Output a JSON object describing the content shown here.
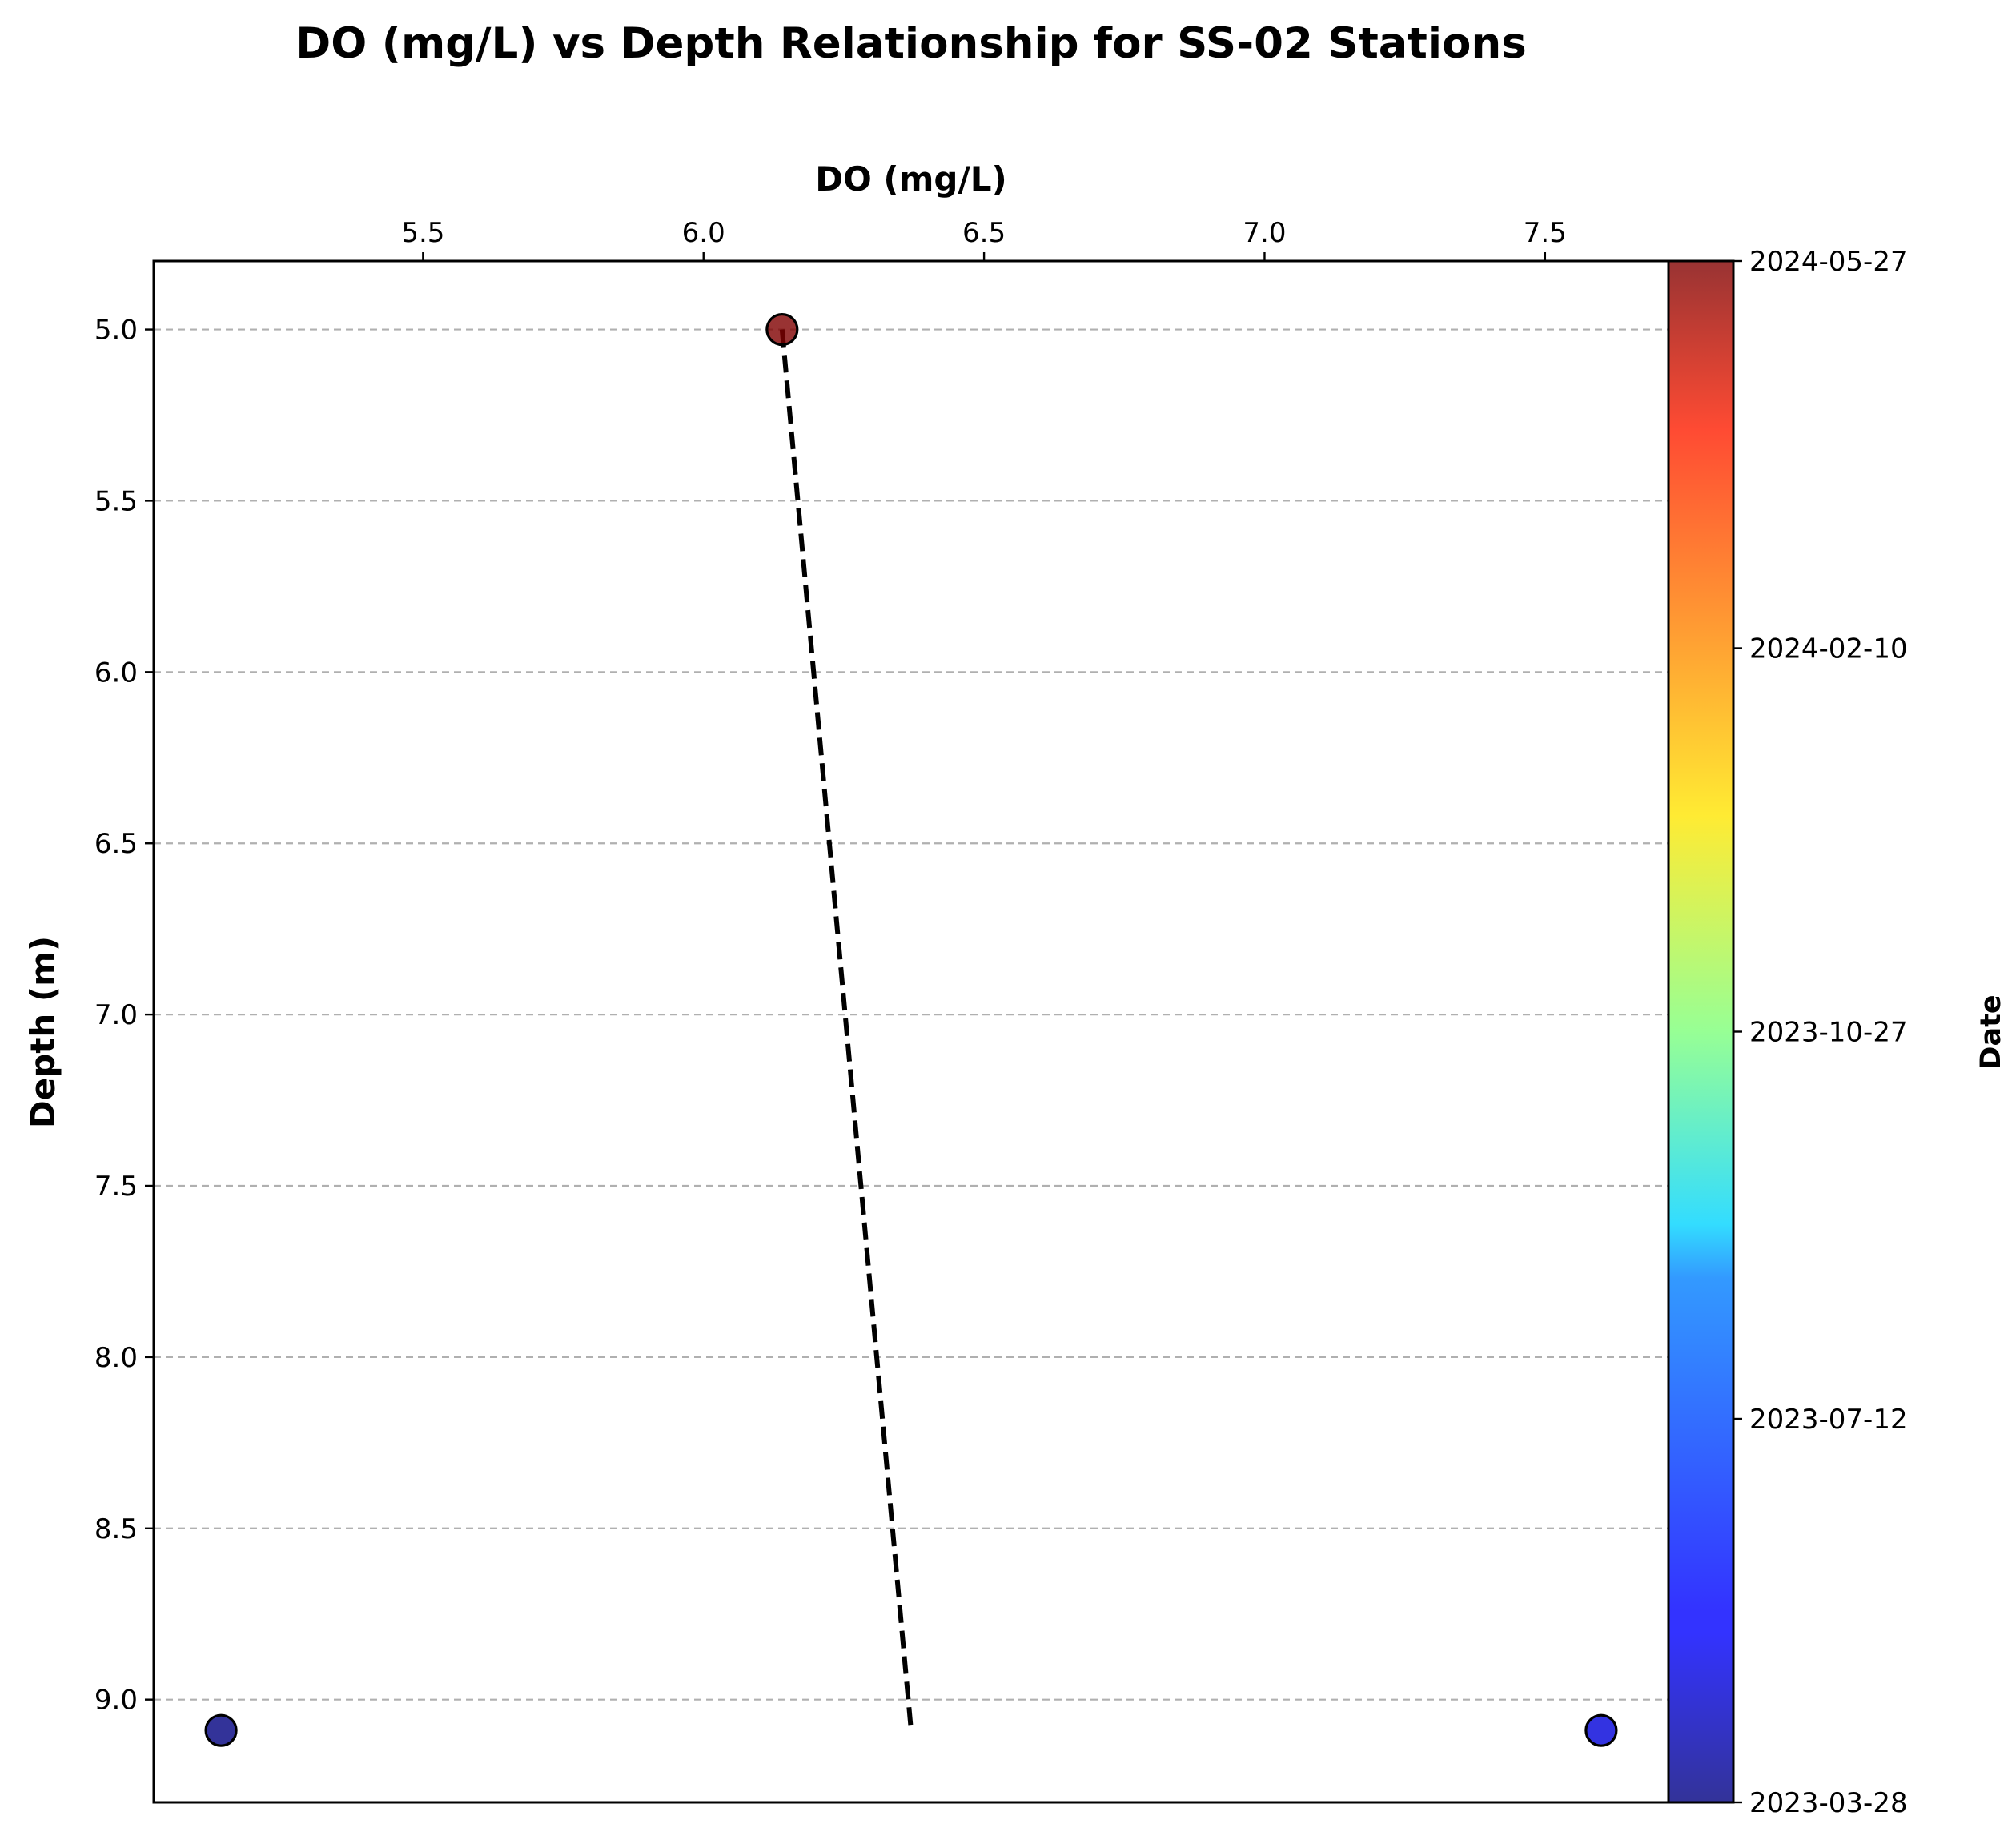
{
  "chart_data": {
    "type": "scatter",
    "title": "DO (mg/L) vs Depth Relationship for SS-02 Stations",
    "xlabel": "DO (mg/L)",
    "ylabel": "Depth (m)",
    "x_axis_position": "top",
    "y_axis_inverted": true,
    "xlim": [
      5.02,
      7.72
    ],
    "ylim": [
      4.8,
      9.3
    ],
    "x_ticks": [
      "5.5",
      "6.0",
      "6.5",
      "7.0",
      "7.5"
    ],
    "y_ticks": [
      "5.0",
      "5.5",
      "6.0",
      "6.5",
      "7.0",
      "7.5",
      "8.0",
      "8.5",
      "9.0"
    ],
    "grid": "horizontal dashed",
    "points": [
      {
        "x": 6.14,
        "y": 5.0,
        "date": "2024-05-27"
      },
      {
        "x": 5.14,
        "y": 9.09,
        "date": "2023-03-28"
      },
      {
        "x": 7.6,
        "y": 9.09,
        "date": "2023-05-05"
      }
    ],
    "trend_line": {
      "style": "dashed",
      "color": "#000000",
      "points": [
        {
          "x": 6.14,
          "y": 5.0
        },
        {
          "x": 6.37,
          "y": 9.09
        }
      ]
    },
    "colorbar": {
      "label": "Date",
      "colormap": "jet",
      "range": [
        "2023-03-28",
        "2024-05-27"
      ],
      "ticks": [
        "2023-03-28",
        "2023-07-12",
        "2023-10-27",
        "2024-02-10",
        "2024-05-27"
      ]
    }
  }
}
